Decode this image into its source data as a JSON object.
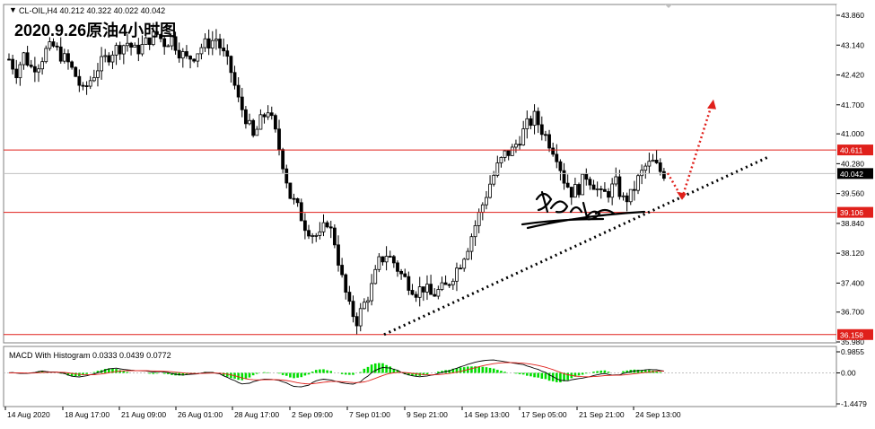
{
  "header": {
    "symbol_line": "CL-OIL,H4  40.212 40.322 40.022 40.042",
    "overlay_title": "2020.9.26原油4小时图"
  },
  "macd": {
    "label": "MACD With Histogram 0.0333 0.0439 0.0772",
    "ticks": [
      "0.9855",
      "0.00",
      "-1.4479"
    ]
  },
  "price_axis": {
    "ticks": [
      "43.860",
      "43.140",
      "42.420",
      "41.700",
      "41.000",
      "40.280",
      "39.560",
      "38.840",
      "38.120",
      "37.400",
      "36.700",
      "35.980"
    ],
    "highlight_labels": [
      {
        "value": "40.611",
        "color": "#e0201b"
      },
      {
        "value": "40.042",
        "color": "#000000"
      },
      {
        "value": "39.106",
        "color": "#e0201b"
      },
      {
        "value": "36.158",
        "color": "#e0201b"
      }
    ]
  },
  "time_axis": [
    "14 Aug 2020",
    "18 Aug 17:00",
    "21 Aug 09:00",
    "26 Aug 01:00",
    "28 Aug 17:00",
    "2 Sep 09:00",
    "7 Sep 01:00",
    "9 Sep 21:00",
    "14 Sep 13:00",
    "17 Sep 05:00",
    "21 Sep 21:00",
    "24 Sep 13:00"
  ],
  "colors": {
    "bull": "#00c000",
    "bear": "#e0201b",
    "line": "#e0201b",
    "dotted": "#000000",
    "arrow": "#e0201b",
    "macd_hist": "#00dd00"
  },
  "chart_data": {
    "type": "candlestick",
    "title": "2020.9.26原油4小时图",
    "symbol": "CL-OIL,H4",
    "ylim": [
      35.98,
      43.86
    ],
    "horizontal_levels": [
      40.611,
      39.106,
      36.158
    ],
    "current_price": 40.042,
    "trendline": {
      "from": [
        0,
        36.158
      ],
      "to": [
        1,
        40.46
      ]
    },
    "close_path": [
      42.8,
      42.5,
      42.9,
      42.6,
      42.7,
      43.0,
      43.1,
      42.9,
      42.7,
      42.4,
      42.0,
      42.3,
      42.6,
      42.8,
      43.0,
      43.1,
      43.2,
      43.0,
      43.1,
      43.3,
      43.4,
      43.2,
      43.3,
      43.0,
      42.8,
      42.9,
      43.1,
      43.2,
      43.3,
      42.9,
      42.5,
      41.8,
      41.4,
      40.9,
      41.3,
      41.6,
      41.0,
      40.3,
      39.5,
      39.2,
      38.8,
      38.6,
      38.5,
      38.9,
      38.4,
      37.5,
      36.8,
      36.5,
      36.9,
      37.3,
      37.9,
      38.1,
      37.9,
      37.6,
      37.4,
      37.2,
      37.3,
      37.1,
      37.2,
      37.3,
      37.6,
      37.9,
      38.3,
      38.8,
      39.3,
      39.8,
      40.2,
      40.5,
      40.6,
      40.9,
      41.2,
      41.4,
      41.1,
      40.8,
      40.5,
      39.9,
      39.6,
      39.7,
      40.0,
      39.8,
      39.5,
      39.6,
      39.8,
      39.4,
      39.5,
      39.9,
      40.2,
      40.3,
      40.1,
      40.0
    ]
  }
}
